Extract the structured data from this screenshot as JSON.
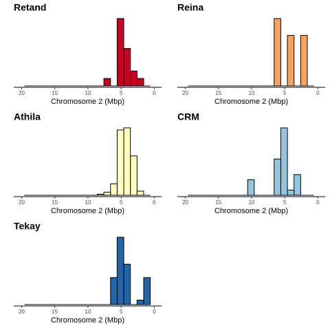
{
  "chart_data": [
    {
      "type": "histogram",
      "title": "Retand",
      "xlabel": "Chromosome 2 (Mbp)",
      "color": "#ca0020",
      "bins": [
        0.6,
        1.6,
        2.6,
        3.6,
        4.6,
        5.6,
        6.6,
        7.6,
        8.6,
        9.6,
        10.6,
        11.6,
        12.6,
        13.6,
        14.6,
        15.6,
        16.6,
        17.6,
        18.6,
        19.6
      ],
      "counts": [
        0,
        1,
        2,
        5,
        9,
        0,
        1,
        0,
        0,
        0,
        0,
        0,
        0,
        0,
        0,
        0,
        0,
        0,
        0
      ],
      "xlim": [
        21.2,
        -1.1
      ],
      "xticks": [
        20,
        15,
        10,
        5,
        0
      ],
      "ylim": [
        0,
        9
      ]
    },
    {
      "type": "histogram",
      "title": "Reina",
      "xlabel": "Chromosome 2 (Mbp)",
      "color": "#f9a35a",
      "bins": [
        0.6,
        1.6,
        2.6,
        3.6,
        4.6,
        5.6,
        6.6,
        7.6,
        8.6,
        9.6,
        10.6,
        11.6,
        12.6,
        13.6,
        14.6,
        15.6,
        16.6,
        17.6,
        18.6,
        19.6
      ],
      "counts": [
        0,
        3,
        0,
        3,
        0,
        4,
        0,
        0,
        0,
        0,
        0,
        0,
        0,
        0,
        0,
        0,
        0,
        0,
        0
      ],
      "xlim": [
        21.2,
        -1.1
      ],
      "xticks": [
        20,
        15,
        10,
        5,
        0
      ],
      "ylim": [
        0,
        4
      ]
    },
    {
      "type": "histogram",
      "title": "Athila",
      "xlabel": "Chromosome 2 (Mbp)",
      "color": "#ffffbf",
      "bins": [
        0.6,
        1.6,
        2.6,
        3.6,
        4.6,
        5.6,
        6.6,
        7.6,
        8.6,
        9.6,
        10.6,
        11.6,
        12.6,
        13.6,
        14.6,
        15.6,
        16.6,
        17.6,
        18.6,
        19.6
      ],
      "counts": [
        0,
        4,
        38,
        65,
        63,
        11,
        3,
        1,
        0,
        0,
        0,
        0,
        0,
        0,
        0,
        0,
        0,
        0,
        0
      ],
      "xlim": [
        21.2,
        -1.1
      ],
      "xticks": [
        20,
        15,
        10,
        5,
        0
      ],
      "ylim": [
        0,
        65
      ]
    },
    {
      "type": "histogram",
      "title": "CRM",
      "xlabel": "Chromosome 2 (Mbp)",
      "color": "#92c5de",
      "bins": [
        0.6,
        1.6,
        2.6,
        3.6,
        4.6,
        5.6,
        6.6,
        7.6,
        8.6,
        9.6,
        10.6,
        11.6,
        12.6,
        13.6,
        14.6,
        15.6,
        16.6,
        17.6,
        18.6,
        19.6
      ],
      "counts": [
        0,
        0,
        4,
        1,
        13,
        7,
        0,
        0,
        0,
        3,
        0,
        0,
        0,
        0,
        0,
        0,
        0,
        0,
        0
      ],
      "xlim": [
        21.2,
        -1.1
      ],
      "xticks": [
        20,
        15,
        10,
        5,
        0
      ],
      "ylim": [
        0,
        13
      ]
    },
    {
      "type": "histogram",
      "title": "Tekay",
      "xlabel": "Chromosome 2 (Mbp)",
      "color": "#2166ac",
      "bins": [
        0.6,
        1.6,
        2.6,
        3.6,
        4.6,
        5.6,
        6.6,
        7.6,
        8.6,
        9.6,
        10.6,
        11.6,
        12.6,
        13.6,
        14.6,
        15.6,
        16.6,
        17.6,
        18.6,
        19.6
      ],
      "counts": [
        6,
        1,
        0,
        9,
        15,
        6,
        0,
        0,
        0,
        0,
        0,
        0,
        0,
        0,
        0,
        0,
        0,
        0,
        0
      ],
      "xlim": [
        21.2,
        -1.1
      ],
      "xticks": [
        20,
        15,
        10,
        5,
        0
      ],
      "ylim": [
        0,
        15
      ]
    }
  ]
}
